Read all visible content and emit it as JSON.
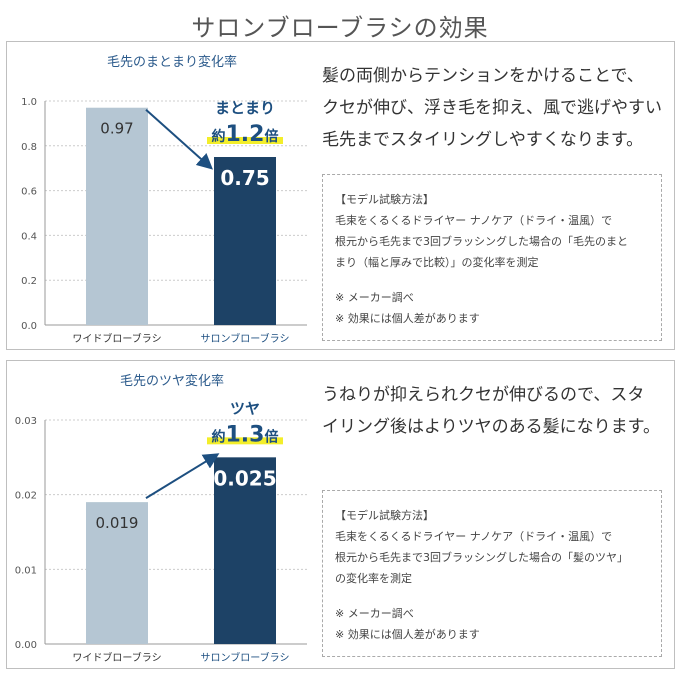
{
  "page_title": "サロンブローブラシの効果",
  "colors": {
    "light_bar": "#b5c6d3",
    "dark_bar": "#1d4266",
    "accent_text": "#1d4f80",
    "highlight": "#f3ee2a",
    "axis": "#999999",
    "grid": "#cccccc"
  },
  "panels": [
    {
      "description": [
        "髪の両側からテンションをかけることで、",
        "クセが伸び、浮き毛を抑え、風で逃げやすい",
        "毛先までスタイリングしやすくなります。"
      ],
      "method_box": {
        "heading": "【モデル試験方法】",
        "lines": [
          "毛束をくるくるドライヤー ナノケア（ドライ・温風）で",
          "根元から毛先まで3回ブラッシングした場合の「毛先のまと",
          "まり（幅と厚みで比較）」の変化率を測定"
        ],
        "notes": [
          "※ メーカー調べ",
          "※ 効果には個人差があります"
        ]
      }
    },
    {
      "description": [
        "うねりが抑えられクセが伸びるので、スタ",
        "イリング後はよりツヤのある髪になります。"
      ],
      "method_box": {
        "heading": "【モデル試験方法】",
        "lines": [
          "毛束をくるくるドライヤー ナノケア（ドライ・温風）で",
          "根元から毛先まで3回ブラッシングした場合の「髪のツヤ」",
          "の変化率を測定"
        ],
        "notes": [
          "※ メーカー調べ",
          "※ 効果には個人差があります"
        ]
      }
    }
  ],
  "chart_data": [
    {
      "type": "bar",
      "title": "毛先のまとまり変化率",
      "categories": [
        "ワイドブローブラシ",
        "サロンブローブラシ"
      ],
      "values": [
        0.97,
        0.75
      ],
      "value_labels": [
        "0.97",
        "0.75"
      ],
      "ylim": [
        0,
        1.0
      ],
      "yticks": [
        "0.0",
        "0.2",
        "0.4",
        "0.6",
        "0.8",
        "1.0"
      ],
      "grid": true,
      "annotation": {
        "label": "まとまり",
        "prefix": "約",
        "value": "1.2",
        "suffix": "倍"
      }
    },
    {
      "type": "bar",
      "title": "毛先のツヤ変化率",
      "categories": [
        "ワイドブローブラシ",
        "サロンブローブラシ"
      ],
      "values": [
        0.019,
        0.025
      ],
      "value_labels": [
        "0.019",
        "0.025"
      ],
      "ylim": [
        0,
        0.03
      ],
      "yticks": [
        "0.00",
        "0.01",
        "0.02",
        "0.03"
      ],
      "grid": true,
      "annotation": {
        "label": "ツヤ",
        "prefix": "約",
        "value": "1.3",
        "suffix": "倍"
      }
    }
  ]
}
